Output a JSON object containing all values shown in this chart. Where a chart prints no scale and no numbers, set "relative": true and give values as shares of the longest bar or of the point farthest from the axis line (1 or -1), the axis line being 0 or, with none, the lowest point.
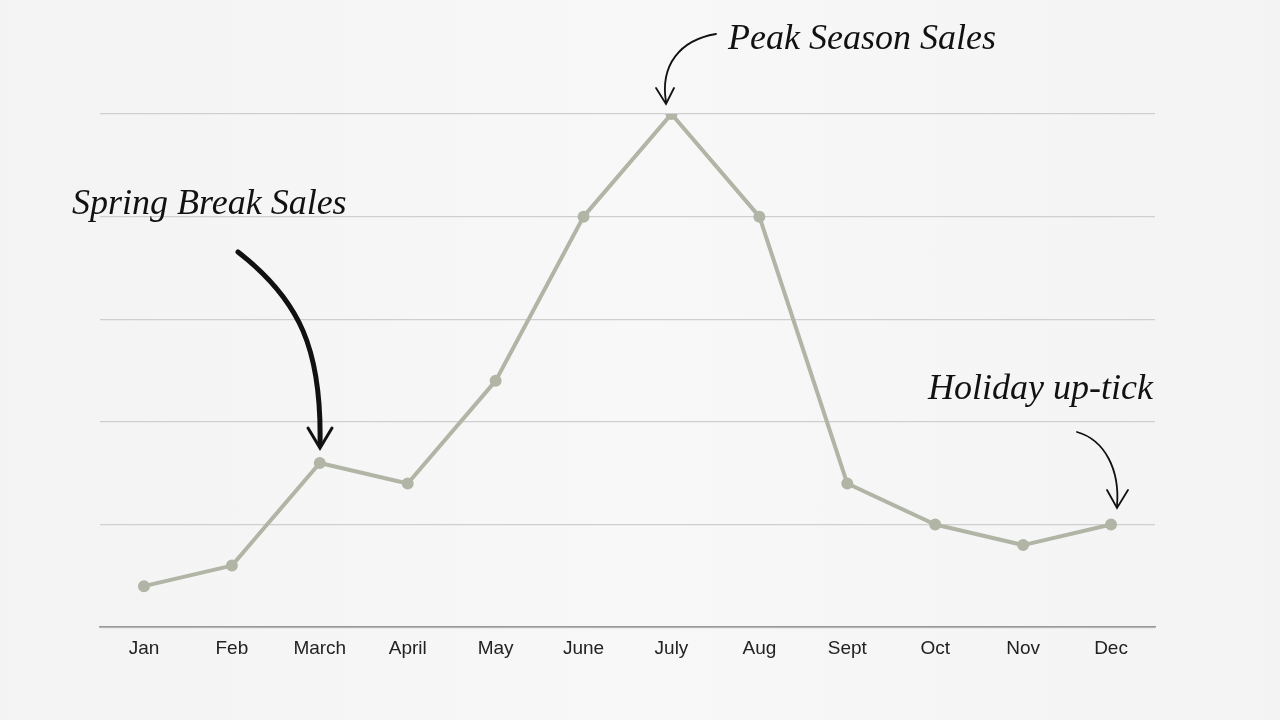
{
  "chart_data": {
    "type": "line",
    "relative": true,
    "categories": [
      "Jan",
      "Feb",
      "March",
      "April",
      "May",
      "June",
      "July",
      "Aug",
      "Sept",
      "Oct",
      "Nov",
      "Dec"
    ],
    "series": [
      {
        "color": "#b0b5a6",
        "values": [
          0.08,
          0.12,
          0.32,
          0.28,
          0.48,
          0.8,
          1,
          0.8,
          0.28,
          0.2,
          0.16,
          0.2
        ]
      }
    ],
    "annotations": [
      "Spring Break Sales",
      "Peak Season Sales",
      "Holiday up-tick"
    ],
    "grid": "y",
    "legend": false,
    "marker": "circle",
    "line_style": "solid"
  }
}
